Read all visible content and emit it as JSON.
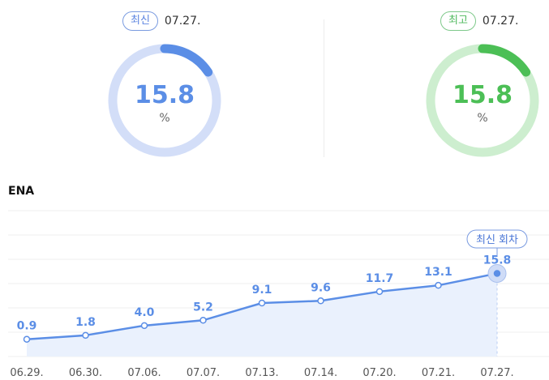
{
  "latest": {
    "badge": "최신",
    "date": "07.27.",
    "value": "15.8",
    "unit": "%",
    "fraction": 0.158,
    "color": "#5b8ee6",
    "track": "#d3def8"
  },
  "best": {
    "badge": "최고",
    "date": "07.27.",
    "value": "15.8",
    "unit": "%",
    "fraction": 0.158,
    "color": "#4cbf56",
    "track": "#cdeecf"
  },
  "chart_data": {
    "type": "line",
    "title": "ENA",
    "categories": [
      "06.29.",
      "06.30.",
      "07.06.",
      "07.07.",
      "07.13.",
      "07.14.",
      "07.20.",
      "07.21.",
      "07.27."
    ],
    "values": [
      0.9,
      1.8,
      4.0,
      5.2,
      9.1,
      9.6,
      11.7,
      13.1,
      15.8
    ],
    "ylim": [
      -3,
      30
    ],
    "grid": true,
    "line_color": "#5b8ee6",
    "fill_color": "#eaf1fd",
    "callout": "최신 회차"
  }
}
